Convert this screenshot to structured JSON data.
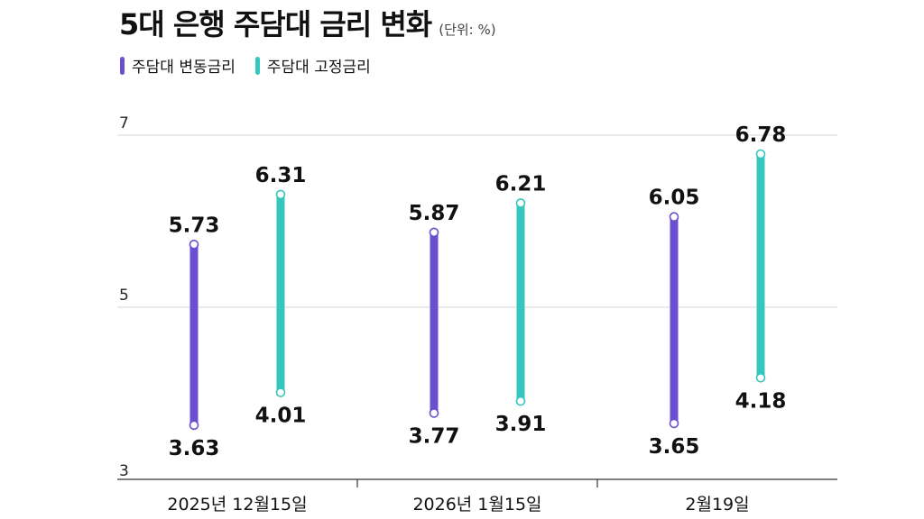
{
  "title": "5대 은행 주담대 금리 변화",
  "unit": "(단위: %)",
  "colors": {
    "variable": "#6a4fcf",
    "fixed": "#35c7be",
    "grid": "#d4d4d4"
  },
  "chart_data": {
    "type": "range-bar",
    "categories": [
      "2025년 12월15일",
      "2026년 1월15일",
      "2월19일"
    ],
    "series": [
      {
        "name": "주담대 변동금리",
        "low": [
          3.63,
          3.77,
          3.65
        ],
        "high": [
          5.73,
          5.87,
          6.05
        ],
        "low_labels": [
          "3.63",
          "3.77",
          "3.65"
        ],
        "high_labels": [
          "5.73",
          "5.87",
          "6.05"
        ]
      },
      {
        "name": "주담대 고정금리",
        "low": [
          4.01,
          3.91,
          4.18
        ],
        "high": [
          6.31,
          6.21,
          6.78
        ],
        "low_labels": [
          "4.01",
          "3.91",
          "4.18"
        ],
        "high_labels": [
          "6.31",
          "6.21",
          "6.78"
        ]
      }
    ],
    "yticks": [
      "3",
      "5",
      "7"
    ],
    "ylim": [
      3,
      7
    ],
    "grid": true,
    "legend": "top-left"
  }
}
